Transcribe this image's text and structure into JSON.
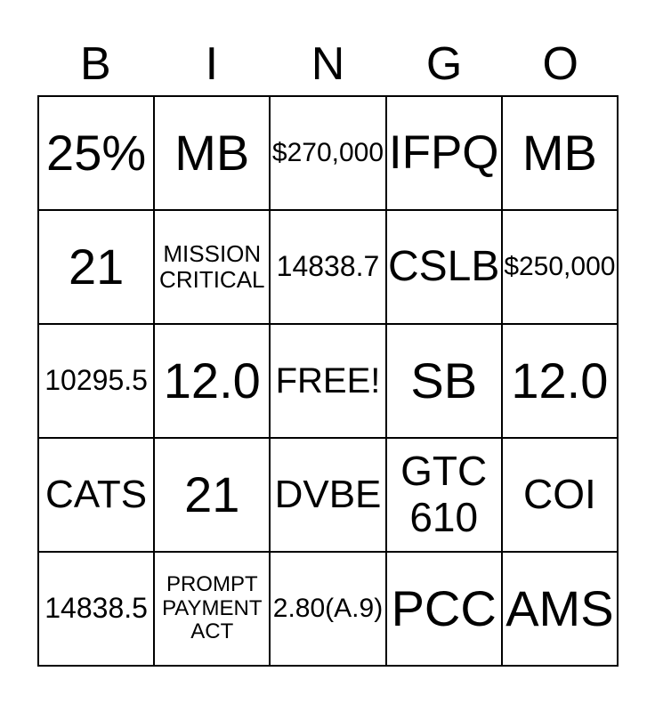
{
  "title": "BINGO",
  "colors": {
    "background": "#ffffff",
    "text": "#000000",
    "grid_border": "#000000"
  },
  "header": {
    "letters": [
      "B",
      "I",
      "N",
      "G",
      "O"
    ]
  },
  "grid": {
    "free_space_label": "FREE!",
    "rows": [
      {
        "cells": [
          {
            "label": "25%"
          },
          {
            "label": "MB"
          },
          {
            "label": "$270,000"
          },
          {
            "label": "IFPQ"
          },
          {
            "label": "MB"
          }
        ]
      },
      {
        "cells": [
          {
            "label": "21"
          },
          {
            "label": "MISSION CRITICAL"
          },
          {
            "label": "14838.7"
          },
          {
            "label": "CSLB"
          },
          {
            "label": "$250,000"
          }
        ]
      },
      {
        "cells": [
          {
            "label": "10295.5"
          },
          {
            "label": "12.0"
          },
          {
            "label": "FREE!"
          },
          {
            "label": "SB"
          },
          {
            "label": "12.0"
          }
        ]
      },
      {
        "cells": [
          {
            "label": "CATS"
          },
          {
            "label": "21"
          },
          {
            "label": "DVBE"
          },
          {
            "label": "GTC 610"
          },
          {
            "label": "COI"
          }
        ]
      },
      {
        "cells": [
          {
            "label": "14838.5"
          },
          {
            "label": "PROMPT PAYMENT ACT"
          },
          {
            "label": "2.80(A.9)"
          },
          {
            "label": "PCC"
          },
          {
            "label": "AMS"
          }
        ]
      }
    ]
  }
}
